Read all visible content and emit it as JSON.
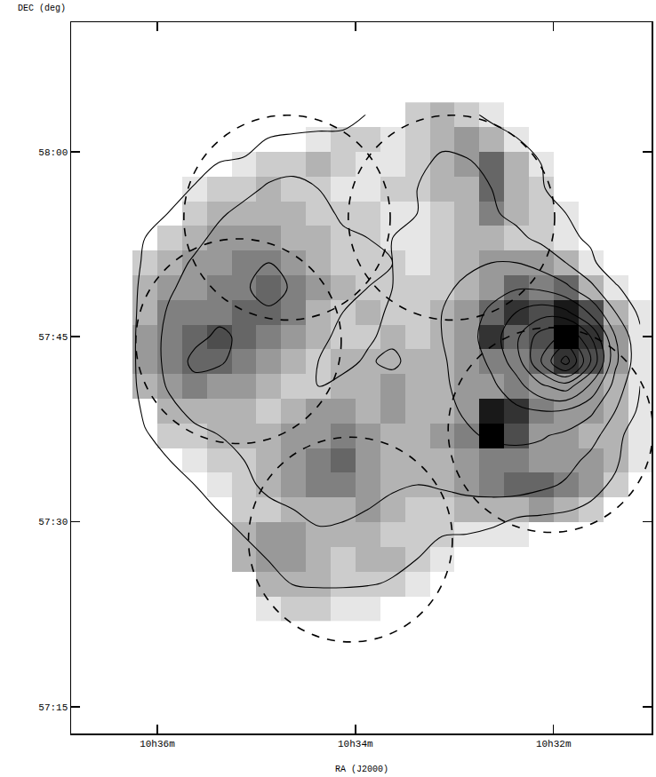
{
  "chart_data": {
    "type": "heatmap",
    "xlabel": "RA (J2000)",
    "ylabel": "DEC (deg)",
    "grid": false,
    "xlim": [
      636.87,
      631.01
    ],
    "ylim": [
      57.214,
      58.175
    ],
    "xticks": [
      {
        "value": 636,
        "label": "10h36m"
      },
      {
        "value": 634,
        "label": "10h34m"
      },
      {
        "value": 632,
        "label": "10h32m"
      }
    ],
    "yticks": [
      {
        "value": 57.25,
        "label": "57:15"
      },
      {
        "value": 57.5,
        "label": "57:30"
      },
      {
        "value": 57.75,
        "label": "57:45"
      },
      {
        "value": 58,
        "label": "58:00"
      }
    ],
    "x": [
      636.625,
      636.375,
      636.125,
      635.875,
      635.625,
      635.375,
      635.125,
      634.875,
      634.625,
      634.375,
      634.125,
      633.875,
      633.625,
      633.375,
      633.125,
      632.875,
      632.625,
      632.375,
      632.125,
      631.875,
      631.625,
      631.375,
      631.125
    ],
    "y": [
      57.3833,
      57.4167,
      57.45,
      57.4833,
      57.5167,
      57.55,
      57.5833,
      57.6167,
      57.65,
      57.6833,
      57.7167,
      57.75,
      57.7833,
      57.8167,
      57.85,
      57.8833,
      57.9167,
      57.95,
      57.9833,
      58.0167,
      58.05
    ],
    "zlim": [
      0,
      10
    ],
    "image": [
      [
        0,
        0,
        0,
        0,
        0,
        0,
        0,
        1,
        2,
        2,
        1,
        1,
        0,
        0,
        0,
        0,
        0,
        0,
        0,
        0,
        0,
        0,
        0
      ],
      [
        0,
        0,
        0,
        0,
        0,
        0,
        0,
        3,
        3,
        3,
        2,
        2,
        2,
        1,
        0,
        0,
        0,
        0,
        0,
        0,
        0,
        0,
        0
      ],
      [
        0,
        0,
        0,
        0,
        0,
        0,
        3,
        4,
        4,
        3,
        2,
        3,
        3,
        2,
        1,
        0,
        0,
        0,
        0,
        0,
        0,
        0,
        0
      ],
      [
        0,
        0,
        0,
        0,
        0,
        0,
        3,
        4,
        4,
        3,
        3,
        3,
        2,
        2,
        2,
        1,
        1,
        1,
        0,
        0,
        0,
        0,
        0
      ],
      [
        0,
        0,
        0,
        0,
        0,
        0,
        2,
        2,
        3,
        3,
        3,
        4,
        3,
        2,
        2,
        3,
        3,
        3,
        4,
        3,
        2,
        0,
        0
      ],
      [
        0,
        0,
        0,
        0,
        0,
        1,
        2,
        3,
        4,
        5,
        5,
        4,
        3,
        3,
        3,
        4,
        5,
        6,
        6,
        5,
        4,
        2,
        0
      ],
      [
        0,
        0,
        0,
        0,
        1,
        2,
        2,
        3,
        4,
        5,
        6,
        4,
        3,
        3,
        3,
        4,
        5,
        5,
        4,
        4,
        4,
        3,
        1
      ],
      [
        0,
        0,
        0,
        2,
        2,
        3,
        3,
        3,
        4,
        4,
        5,
        4,
        3,
        3,
        4,
        5,
        10,
        7,
        4,
        4,
        3,
        3,
        1
      ],
      [
        0,
        0,
        0,
        3,
        3,
        3,
        3,
        2,
        3,
        4,
        4,
        3,
        4,
        3,
        3,
        4,
        9,
        8,
        5,
        4,
        4,
        3,
        1
      ],
      [
        0,
        0,
        3,
        4,
        5,
        4,
        4,
        3,
        2,
        2,
        3,
        3,
        4,
        3,
        3,
        4,
        4,
        5,
        4,
        4,
        4,
        3,
        1
      ],
      [
        0,
        0,
        4,
        5,
        6,
        6,
        5,
        4,
        3,
        2,
        3,
        3,
        3,
        3,
        3,
        4,
        5,
        5,
        6,
        8,
        7,
        4,
        1
      ],
      [
        0,
        0,
        4,
        5,
        6,
        7,
        6,
        5,
        4,
        3,
        2,
        2,
        3,
        2,
        3,
        4,
        8,
        6,
        7,
        10,
        8,
        4,
        1
      ],
      [
        0,
        0,
        3,
        5,
        5,
        5,
        6,
        6,
        5,
        3,
        2,
        3,
        2,
        2,
        3,
        4,
        6,
        8,
        7,
        9,
        7,
        3,
        1
      ],
      [
        0,
        0,
        3,
        4,
        4,
        5,
        5,
        6,
        5,
        4,
        3,
        2,
        2,
        2,
        2,
        3,
        4,
        6,
        5,
        6,
        3,
        1,
        0
      ],
      [
        0,
        0,
        2,
        3,
        4,
        4,
        5,
        5,
        4,
        3,
        2,
        2,
        2,
        1,
        2,
        3,
        4,
        4,
        4,
        3,
        1,
        0,
        0
      ],
      [
        0,
        0,
        0,
        2,
        3,
        4,
        4,
        4,
        3,
        3,
        2,
        2,
        1,
        1,
        2,
        3,
        3,
        2,
        2,
        1,
        0,
        0,
        0
      ],
      [
        0,
        0,
        0,
        0,
        2,
        3,
        3,
        3,
        3,
        2,
        2,
        2,
        1,
        1,
        2,
        3,
        5,
        3,
        2,
        1,
        0,
        0,
        0
      ],
      [
        0,
        0,
        0,
        0,
        1,
        2,
        2,
        3,
        2,
        2,
        1,
        1,
        2,
        2,
        3,
        3,
        6,
        3,
        2,
        0,
        0,
        0,
        0
      ],
      [
        0,
        0,
        0,
        0,
        0,
        0,
        1,
        2,
        2,
        3,
        2,
        1,
        1,
        2,
        3,
        4,
        6,
        3,
        1,
        0,
        0,
        0,
        0
      ],
      [
        0,
        0,
        0,
        0,
        0,
        0,
        0,
        0,
        0,
        1,
        2,
        2,
        1,
        2,
        3,
        4,
        3,
        1,
        0,
        0,
        0,
        0,
        0
      ],
      [
        0,
        0,
        0,
        0,
        0,
        0,
        0,
        0,
        0,
        0,
        0,
        0,
        0,
        2,
        3,
        2,
        1,
        0,
        0,
        0,
        0,
        0,
        0
      ]
    ],
    "contours": {
      "start": 1,
      "end": 10,
      "size": 1,
      "z": [
        [
          0,
          0,
          0,
          0,
          0,
          0,
          0,
          0,
          0,
          0,
          0,
          0,
          0,
          0,
          0,
          0,
          0,
          0,
          0,
          0,
          0,
          0,
          0
        ],
        [
          0,
          0,
          0,
          0,
          0,
          0,
          0,
          0,
          1.1,
          1.2,
          1.2,
          1.1,
          0.9,
          0,
          0,
          0,
          0,
          0,
          0,
          0,
          0,
          0,
          0
        ],
        [
          0,
          0,
          0,
          0,
          0,
          0,
          0,
          1.1,
          1.4,
          1.6,
          1.6,
          1.5,
          1.3,
          1.0,
          0,
          0,
          0,
          0,
          0,
          0,
          0,
          0,
          0
        ],
        [
          0,
          0,
          0,
          0,
          0,
          0,
          1.1,
          1.4,
          1.7,
          1.9,
          1.9,
          1.8,
          1.5,
          1.2,
          1.1,
          1.0,
          0.8,
          0,
          0,
          0,
          0,
          0,
          0
        ],
        [
          0,
          0,
          0,
          0,
          0,
          1.1,
          1.5,
          1.8,
          2.0,
          2.2,
          2.1,
          2.0,
          1.8,
          1.7,
          1.6,
          1.6,
          1.6,
          1.5,
          1.3,
          1.1,
          0.8,
          0,
          0
        ],
        [
          0,
          0,
          0,
          0,
          1.0,
          1.4,
          1.8,
          2.2,
          2.4,
          2.5,
          2.4,
          2.3,
          2.1,
          2.0,
          2.1,
          2.3,
          2.4,
          2.4,
          2.2,
          1.9,
          1.4,
          0.8,
          0
        ],
        [
          0,
          0,
          0,
          1.0,
          1.3,
          1.7,
          2.0,
          2.2,
          2.4,
          2.7,
          2.6,
          2.4,
          2.2,
          2.3,
          2.4,
          2.6,
          2.7,
          2.7,
          2.6,
          2.3,
          1.8,
          1.2,
          0
        ],
        [
          0,
          0,
          0.9,
          1.4,
          1.8,
          2.0,
          2.1,
          2.1,
          2.3,
          2.5,
          2.6,
          2.4,
          2.2,
          2.4,
          2.6,
          2.9,
          3.1,
          3.2,
          3.1,
          2.8,
          2.3,
          1.5,
          0
        ],
        [
          0,
          0,
          1.2,
          1.8,
          2.2,
          2.2,
          2.2,
          2.1,
          2.2,
          2.3,
          2.4,
          2.2,
          2.3,
          2.6,
          2.8,
          3.1,
          3.4,
          3.8,
          4.0,
          3.9,
          3.2,
          2.0,
          0.8
        ],
        [
          0,
          0,
          1.5,
          2.1,
          2.6,
          2.6,
          2.5,
          2.3,
          2.1,
          2.0,
          2.2,
          2.3,
          2.4,
          2.6,
          2.9,
          3.2,
          3.8,
          4.6,
          5.8,
          6.5,
          4.8,
          2.6,
          1.0
        ],
        [
          0,
          0,
          1.6,
          2.2,
          3.3,
          3.1,
          2.7,
          2.5,
          2.3,
          2.0,
          1.8,
          2.1,
          1.8,
          2.4,
          2.9,
          3.4,
          4.2,
          5.5,
          8.0,
          10.5,
          7.0,
          3.2,
          1.3
        ],
        [
          0,
          0,
          1.6,
          2.2,
          2.7,
          3.2,
          2.8,
          2.6,
          2.5,
          2.2,
          1.8,
          1.9,
          2.2,
          2.5,
          3.0,
          3.6,
          4.5,
          5.8,
          7.5,
          8.2,
          6.0,
          3.0,
          1.2
        ],
        [
          0,
          0,
          1.5,
          2.1,
          2.5,
          2.7,
          2.8,
          2.9,
          2.7,
          2.4,
          2.0,
          1.8,
          2.1,
          2.4,
          3.0,
          3.5,
          4.2,
          5.0,
          5.5,
          5.2,
          3.8,
          2.0,
          0.8
        ],
        [
          0,
          0,
          1.4,
          1.9,
          2.3,
          2.7,
          2.9,
          3.3,
          2.9,
          2.5,
          2.2,
          2.0,
          2.0,
          2.3,
          2.8,
          3.2,
          3.6,
          3.9,
          3.8,
          3.2,
          2.2,
          1.2,
          0
        ],
        [
          0,
          0,
          1.2,
          1.7,
          2.1,
          2.5,
          2.8,
          3.0,
          2.8,
          2.5,
          2.2,
          2.1,
          2.0,
          2.2,
          2.5,
          2.8,
          3.0,
          3.0,
          2.6,
          2.0,
          1.3,
          0,
          0
        ],
        [
          0,
          0,
          1.0,
          1.4,
          1.8,
          2.2,
          2.5,
          2.6,
          2.6,
          2.4,
          2.1,
          2.0,
          2.0,
          2.1,
          2.2,
          2.3,
          2.4,
          2.2,
          1.8,
          1.3,
          0.8,
          0,
          0
        ],
        [
          0,
          0,
          0,
          1.1,
          1.5,
          1.9,
          2.2,
          2.3,
          2.4,
          2.2,
          1.9,
          1.8,
          1.8,
          2.0,
          2.2,
          2.2,
          2.1,
          1.8,
          1.4,
          1.0,
          0,
          0,
          0
        ],
        [
          0,
          0,
          0,
          0,
          1.2,
          1.5,
          1.8,
          2.1,
          2.2,
          2.0,
          1.7,
          1.5,
          1.6,
          2.0,
          2.3,
          2.3,
          2.0,
          1.6,
          1.2,
          0,
          0,
          0,
          0
        ],
        [
          0,
          0,
          0,
          0,
          0,
          1.1,
          1.4,
          1.7,
          1.8,
          1.8,
          1.6,
          1.3,
          1.4,
          1.8,
          2.2,
          2.1,
          1.8,
          1.4,
          1.0,
          0,
          0,
          0,
          0
        ],
        [
          0,
          0,
          0,
          0,
          0,
          0,
          0,
          1.1,
          1.3,
          1.5,
          1.6,
          1.5,
          1.4,
          1.6,
          1.8,
          1.7,
          1.4,
          1.1,
          0,
          0,
          0,
          0,
          0
        ],
        [
          0,
          0,
          0,
          0,
          0,
          0,
          0,
          0,
          0,
          0,
          0,
          1.1,
          1.3,
          1.5,
          1.4,
          1.2,
          0.8,
          0,
          0,
          0,
          0,
          0,
          0
        ]
      ]
    },
    "fields": [
      {
        "ra": 635.18,
        "dec": 57.744,
        "radius": 8.3
      },
      {
        "ra": 634.69,
        "dec": 57.911,
        "radius": 8.3
      },
      {
        "ra": 633.03,
        "dec": 57.911,
        "radius": 8.3
      },
      {
        "ra": 632.03,
        "dec": 57.624,
        "radius": 8.3
      },
      {
        "ra": 634.05,
        "dec": 57.476,
        "radius": 8.3
      }
    ]
  }
}
